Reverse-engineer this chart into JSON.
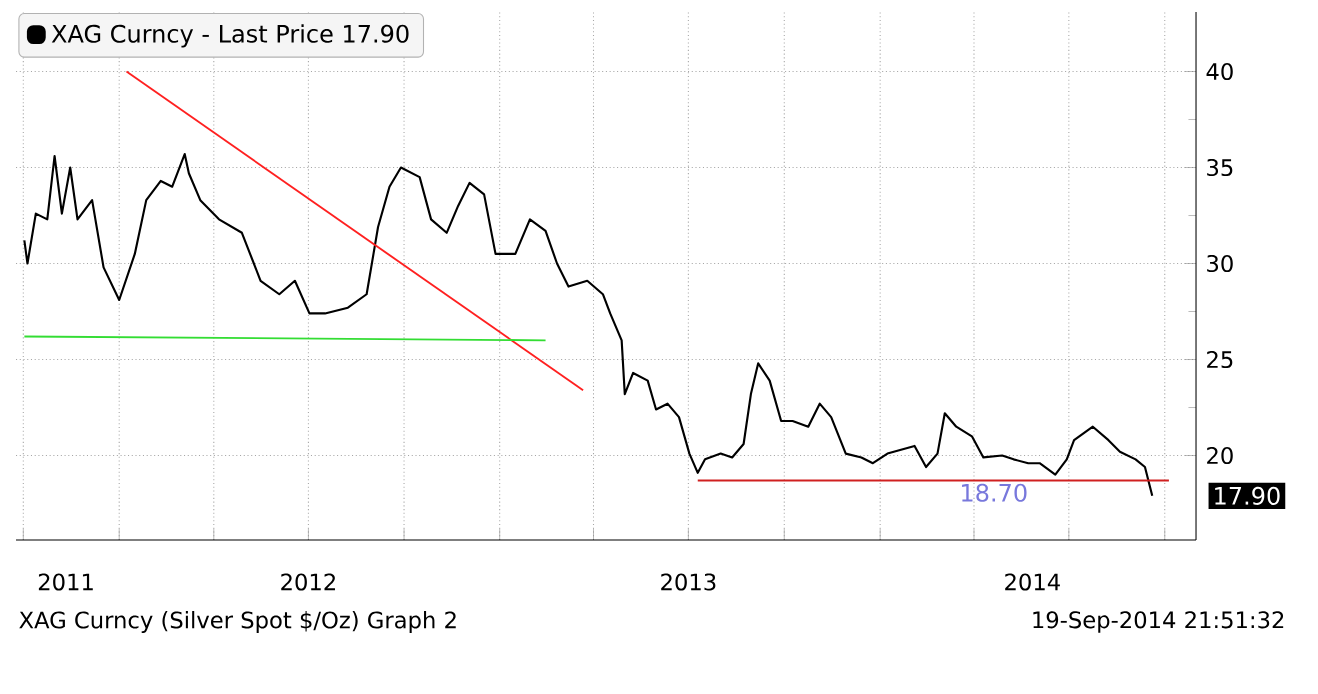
{
  "chart_data": {
    "type": "line",
    "legend": "top left",
    "grid": true,
    "marker": "none",
    "xlim": [
      "2011-09-24",
      "2014-10-31"
    ],
    "ylim": [
      15.6,
      43.1
    ],
    "yticks": [
      20,
      25,
      30,
      35,
      40
    ],
    "xticks": [
      {
        "value": "2011-10-01",
        "label": null
      },
      {
        "value": "2012-01-01",
        "label": null
      },
      {
        "value": "2012-04-01",
        "label": null
      },
      {
        "value": "2012-07-01",
        "label": null
      },
      {
        "value": "2012-10-01",
        "label": null
      },
      {
        "value": "2013-01-01",
        "label": null
      },
      {
        "value": "2013-04-01",
        "label": null
      },
      {
        "value": "2013-07-01",
        "label": null
      },
      {
        "value": "2013-10-01",
        "label": null
      },
      {
        "value": "2014-01-01",
        "label": null
      },
      {
        "value": "2014-04-01",
        "label": null
      },
      {
        "value": "2014-07-01",
        "label": null
      },
      {
        "value": "2014-10-01",
        "label": null
      },
      {
        "value": "2011-11-11",
        "label": "2011"
      },
      {
        "value": "2012-07-01",
        "label": "2012"
      },
      {
        "value": "2013-07-01",
        "label": "2013"
      },
      {
        "value": "2014-05-27",
        "label": "2014"
      }
    ],
    "series": [
      {
        "name": "XAG Curncy - Last Price 17.90",
        "color": "#000000",
        "x": [
          "2011-10-02",
          "2011-10-05",
          "2011-10-13",
          "2011-10-24",
          "2011-10-31",
          "2011-11-07",
          "2011-11-15",
          "2011-11-22",
          "2011-12-06",
          "2011-12-17",
          "2012-01-01",
          "2012-01-16",
          "2012-01-27",
          "2012-02-10",
          "2012-02-21",
          "2012-03-04",
          "2012-03-08",
          "2012-03-19",
          "2012-04-06",
          "2012-04-28",
          "2012-05-16",
          "2012-06-03",
          "2012-06-18",
          "2012-07-02",
          "2012-07-17",
          "2012-08-08",
          "2012-08-26",
          "2012-09-06",
          "2012-09-17",
          "2012-09-28",
          "2012-10-16",
          "2012-10-27",
          "2012-11-11",
          "2012-11-22",
          "2012-12-03",
          "2012-12-17",
          "2012-12-28",
          "2013-01-16",
          "2013-01-30",
          "2013-02-14",
          "2013-02-25",
          "2013-03-08",
          "2013-03-26",
          "2013-04-10",
          "2013-04-17",
          "2013-04-28",
          "2013-05-01",
          "2013-05-09",
          "2013-05-23",
          "2013-05-31",
          "2013-06-11",
          "2013-06-22",
          "2013-07-02",
          "2013-07-10",
          "2013-07-17",
          "2013-08-01",
          "2013-08-12",
          "2013-08-23",
          "2013-08-30",
          "2013-09-06",
          "2013-09-17",
          "2013-09-28",
          "2013-10-09",
          "2013-10-24",
          "2013-11-04",
          "2013-11-15",
          "2013-11-29",
          "2013-12-14",
          "2013-12-25",
          "2014-01-08",
          "2014-02-03",
          "2014-02-14",
          "2014-02-25",
          "2014-03-04",
          "2014-03-15",
          "2014-03-30",
          "2014-04-10",
          "2014-04-28",
          "2014-05-09",
          "2014-05-23",
          "2014-06-03",
          "2014-06-18",
          "2014-06-29",
          "2014-07-06",
          "2014-07-24",
          "2014-08-08",
          "2014-08-19",
          "2014-09-03",
          "2014-09-12",
          "2014-09-19"
        ],
        "values": [
          31.2,
          30.0,
          32.6,
          32.3,
          35.6,
          32.6,
          35.0,
          32.3,
          33.3,
          29.8,
          28.1,
          30.5,
          33.3,
          34.3,
          34.0,
          35.7,
          34.7,
          33.3,
          32.3,
          31.6,
          29.1,
          28.4,
          29.1,
          27.4,
          27.4,
          27.7,
          28.4,
          31.9,
          34.0,
          35.0,
          34.5,
          32.3,
          31.6,
          33.0,
          34.2,
          33.6,
          30.5,
          30.5,
          32.3,
          31.7,
          30.0,
          28.8,
          29.1,
          28.4,
          27.4,
          26.0,
          23.2,
          24.3,
          23.9,
          22.4,
          22.7,
          22.0,
          20.1,
          19.1,
          19.8,
          20.1,
          19.9,
          20.6,
          23.2,
          24.8,
          23.9,
          21.8,
          21.8,
          21.5,
          22.7,
          22.0,
          20.1,
          19.9,
          19.6,
          20.1,
          20.5,
          19.4,
          20.1,
          22.2,
          21.5,
          21.0,
          19.9,
          20.0,
          19.8,
          19.6,
          19.6,
          19.0,
          19.8,
          20.8,
          21.5,
          20.8,
          20.2,
          19.8,
          19.4,
          17.9
        ]
      },
      {
        "color": "#ff2020",
        "x": [
          "2012-01-08",
          "2013-03-22"
        ],
        "values": [
          40.0,
          23.4
        ]
      },
      {
        "color": "#33dd33",
        "x": [
          "2011-10-02",
          "2013-02-14"
        ],
        "values": [
          26.2,
          26.0
        ]
      },
      {
        "color": "#d02020",
        "x": [
          "2013-07-10",
          "2014-10-05"
        ],
        "values": [
          18.7,
          18.7
        ]
      }
    ],
    "annotations": [
      {
        "text": "18.70",
        "x": "2014-04-20",
        "y": 18.7
      },
      "17.90",
      "XAG Curncy (Silver Spot  $/Oz) Graph 2",
      "19-Sep-2014 21:51:32"
    ]
  }
}
